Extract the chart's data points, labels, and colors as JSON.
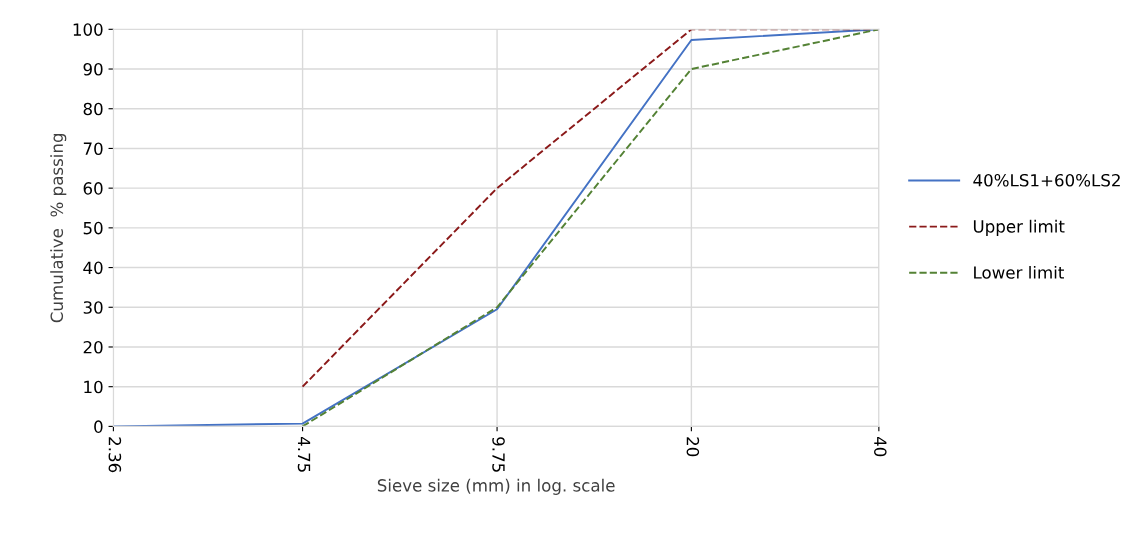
{
  "chart_data": {
    "type": "line",
    "xlabel": "Sieve size (mm) in log. scale",
    "ylabel": "Cumulative  % passing",
    "log": "x",
    "xlim": [
      2.36,
      40
    ],
    "xticks": [
      2.36,
      4.75,
      9.75,
      20,
      40
    ],
    "ylim": [
      0,
      100
    ],
    "yticks": [
      0,
      10,
      20,
      30,
      40,
      50,
      60,
      70,
      80,
      90,
      100
    ],
    "grid": true,
    "legend": "right",
    "series": [
      {
        "name": "40%LS1+60%LS2",
        "color": "#4472c4",
        "line_style": "solid",
        "x": [
          2.36,
          4.75,
          9.75,
          20,
          40
        ],
        "values": [
          0,
          0.7,
          29.5,
          97.3,
          100
        ]
      },
      {
        "name": "Upper limit",
        "color": "#8b1a1a",
        "line_style": "dashed",
        "x": [
          4.75,
          9.75,
          20,
          40
        ],
        "values": [
          10,
          60,
          100,
          100
        ]
      },
      {
        "name": "Lower limit",
        "color": "#548235",
        "line_style": "dashed",
        "x": [
          4.75,
          9.75,
          20,
          40
        ],
        "values": [
          0,
          30,
          90,
          100
        ]
      }
    ]
  }
}
